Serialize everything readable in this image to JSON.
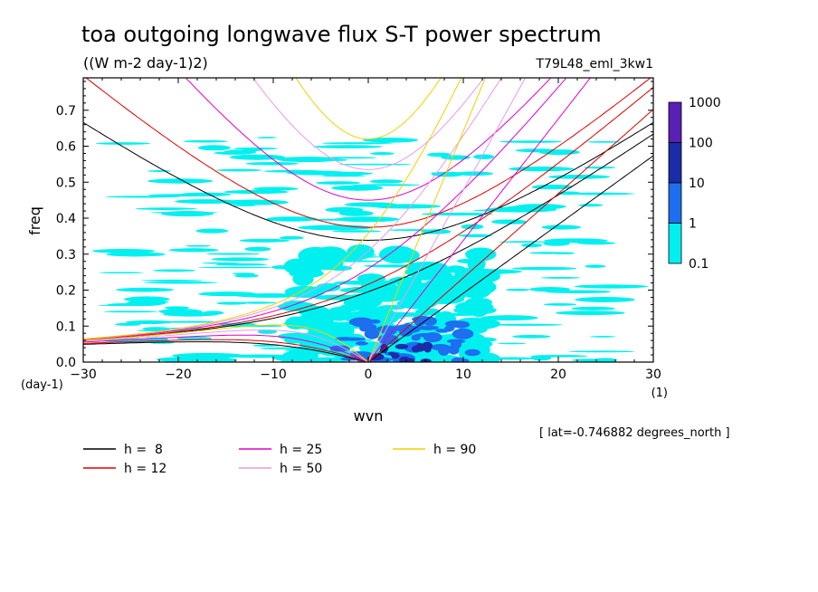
{
  "chart_data": {
    "type": "heatmap",
    "title": "toa outgoing longwave flux S-T power spectrum",
    "subtitle": "((W m-2 day-1)2)",
    "experiment": "T79L48_eml_3kw1",
    "xlabel": "wvn",
    "ylabel": "freq",
    "x_unit_label": "(1)",
    "y_unit_label": "(day-1)",
    "xlim": [
      -30,
      30
    ],
    "ylim": [
      0,
      0.79
    ],
    "x_ticks": [
      "-30",
      "-20",
      "-10",
      "0",
      "10",
      "20",
      "30"
    ],
    "y_ticks": [
      "0.0",
      "0.1",
      "0.2",
      "0.3",
      "0.4",
      "0.5",
      "0.6",
      "0.7"
    ],
    "colorbar": {
      "labels": [
        "1000",
        "100",
        "10",
        "1",
        "0.1"
      ],
      "colors": [
        "#5a1fb4",
        "#1a2ca8",
        "#1e6ef0",
        "#00f0f0"
      ]
    },
    "contour_fill_levels": [
      {
        "level": "0.1-1",
        "color": "#00f0f0"
      },
      {
        "level": "1-10",
        "color": "#1e6ef0"
      },
      {
        "level": "10-100",
        "color": "#1a2ca8"
      }
    ],
    "series": [
      {
        "name": "h =  8",
        "h": 8,
        "color": "#000000"
      },
      {
        "name": "h = 12",
        "h": 12,
        "color": "#e00000"
      },
      {
        "name": "h = 25",
        "h": 25,
        "color": "#e000c8"
      },
      {
        "name": "h = 50",
        "h": 50,
        "color": "#e49ce8"
      },
      {
        "name": "h = 90",
        "h": 90,
        "color": "#f0d000"
      }
    ],
    "annotation": "[ lat=-0.746882 degrees_north ]"
  }
}
